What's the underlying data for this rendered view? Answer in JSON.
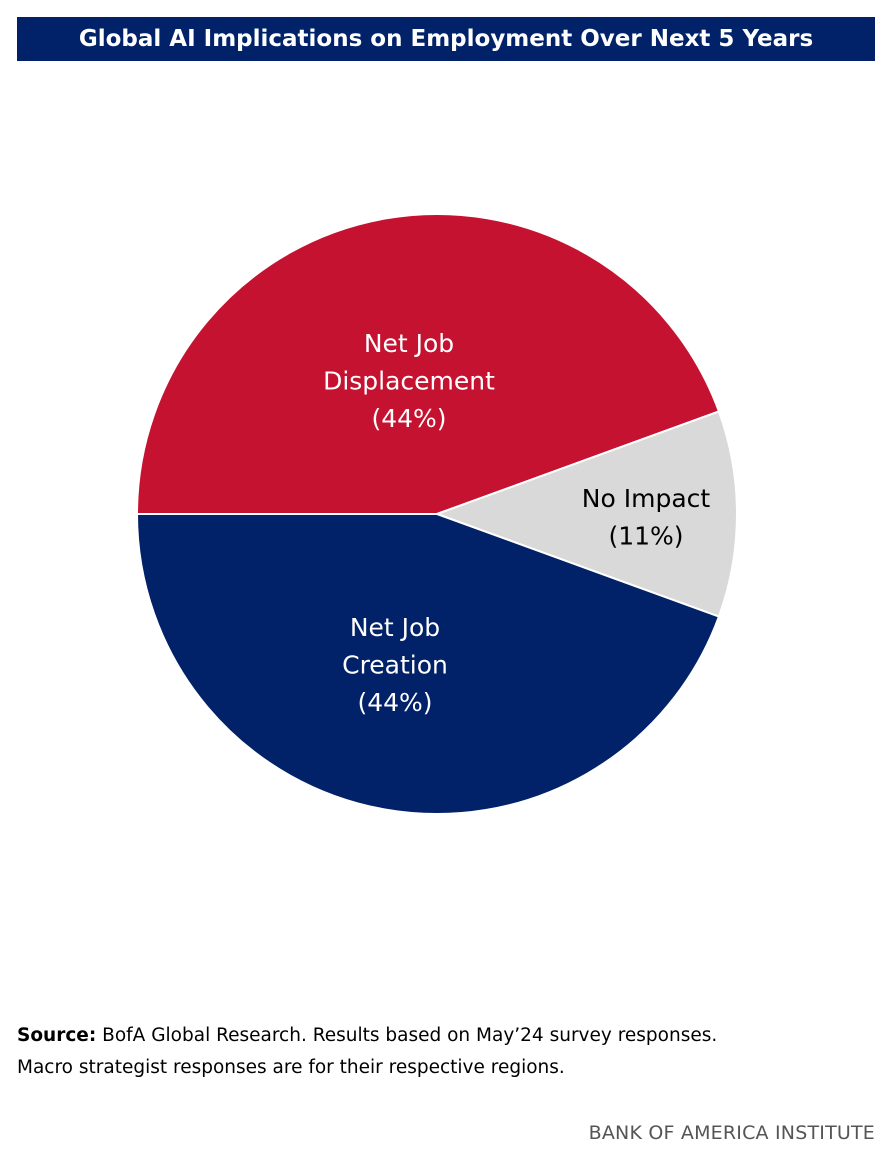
{
  "chart_data": {
    "type": "pie",
    "title": "Global AI Implications on Employment Over Next 5 Years",
    "slices": [
      {
        "name": "Net Job Displacement",
        "label_lines": [
          "Net Job",
          "Displacement",
          "(44%)"
        ],
        "value": 44,
        "color": "#C41230",
        "text_color": "#ffffff"
      },
      {
        "name": "No Impact",
        "label_lines": [
          "No Impact",
          "(11%)"
        ],
        "value": 11,
        "color": "#D9D9D9",
        "text_color": "#000000"
      },
      {
        "name": "Net Job Creation",
        "label_lines": [
          "Net Job",
          "Creation",
          "(44%)"
        ],
        "value": 44,
        "color": "#012169",
        "text_color": "#ffffff"
      }
    ]
  },
  "footer": {
    "source_label": "Source:",
    "source_line1": " BofA Global Research. Results based on May’24 survey responses.",
    "source_line2": "Macro strategist responses are for their respective regions."
  },
  "brand": "BANK OF AMERICA INSTITUTE"
}
